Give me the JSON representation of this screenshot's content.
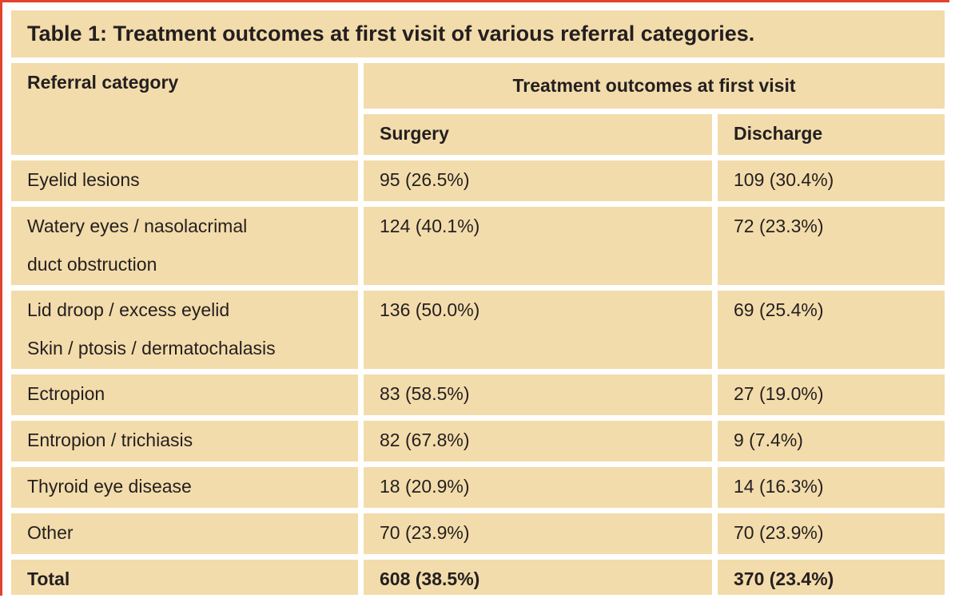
{
  "title": "Table 1: Treatment outcomes at first visit of various referral categories.",
  "table": {
    "referral_header": "Referral category",
    "group_header": "Treatment outcomes at first visit",
    "sub_headers": {
      "surgery": "Surgery",
      "discharge": "Discharge"
    },
    "rows": [
      {
        "category": "Eyelid lesions",
        "surgery": "95 (26.5%)",
        "discharge": "109 (30.4%)"
      },
      {
        "category": "Watery eyes / nasolacrimal\nduct obstruction",
        "surgery": "124 (40.1%)",
        "discharge": "72 (23.3%)"
      },
      {
        "category": "Lid droop / excess eyelid\nSkin / ptosis / dermatochalasis",
        "surgery": "136 (50.0%)",
        "discharge": "69 (25.4%)"
      },
      {
        "category": "Ectropion",
        "surgery": "83 (58.5%)",
        "discharge": "27 (19.0%)"
      },
      {
        "category": "Entropion / trichiasis",
        "surgery": "82 (67.8%)",
        "discharge": "9 (7.4%)"
      },
      {
        "category": "Thyroid eye disease",
        "surgery": "18 (20.9%)",
        "discharge": "14 (16.3%)"
      },
      {
        "category": "Other",
        "surgery": "70 (23.9%)",
        "discharge": "70 (23.9%)"
      },
      {
        "category": "Total",
        "surgery": "608 (38.5%)",
        "discharge": "370 (23.4%)"
      }
    ]
  },
  "colors": {
    "cell_background": "#f3dcab",
    "accent_red": "#e2432c",
    "text": "#231f20",
    "page_background": "#ffffff"
  }
}
